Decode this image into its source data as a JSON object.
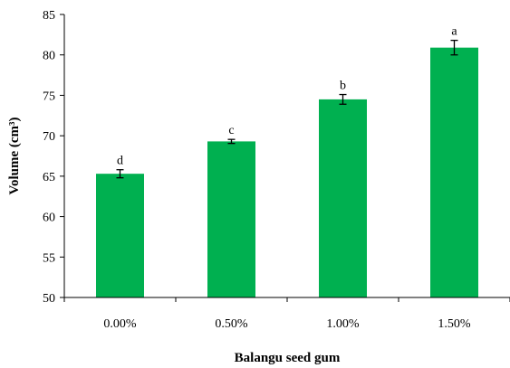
{
  "chart_data": {
    "type": "bar",
    "title": "",
    "xlabel": "Balangu seed gum",
    "ylabel": "Volume (cm³)",
    "ylim": [
      50,
      85
    ],
    "y_ticks": [
      "50",
      "55",
      "60",
      "65",
      "70",
      "75",
      "80",
      "85"
    ],
    "categories": [
      "0.00%",
      "0.50%",
      "1.00%",
      "1.50%"
    ],
    "values": [
      65.3,
      69.3,
      74.5,
      80.9
    ],
    "errors": [
      0.5,
      0.25,
      0.6,
      0.9
    ],
    "significance_letters": [
      "d",
      "c",
      "b",
      "a"
    ],
    "bar_color": "#00b050",
    "grid": false,
    "legend": "none"
  }
}
